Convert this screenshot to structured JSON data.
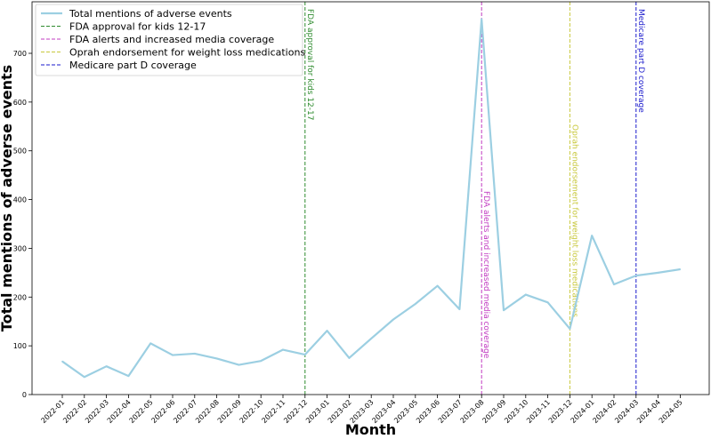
{
  "chart_data": {
    "type": "line",
    "title": "",
    "xlabel": "Month",
    "ylabel": "Total mentions of adverse events",
    "ylim": [
      0,
      780
    ],
    "yticks": [
      0,
      100,
      200,
      300,
      400,
      500,
      600,
      700
    ],
    "grid": false,
    "legend_position": "top-left",
    "categories": [
      "2022-01",
      "2022-02",
      "2022-03",
      "2022-04",
      "2022-05",
      "2022-06",
      "2022-07",
      "2022-08",
      "2022-09",
      "2022-10",
      "2022-11",
      "2022-12",
      "2023-01",
      "2023-02",
      "2023-03",
      "2023-04",
      "2023-05",
      "2023-06",
      "2023-07",
      "2023-08",
      "2023-09",
      "2023-10",
      "2023-11",
      "2023-12",
      "2024-01",
      "2024-02",
      "2024-03",
      "2024-04",
      "2024-05"
    ],
    "series": [
      {
        "name": "Total mentions of adverse events",
        "color": "#9ccfe2",
        "values": [
          68,
          36,
          58,
          38,
          105,
          81,
          84,
          74,
          61,
          69,
          92,
          82,
          131,
          75,
          115,
          154,
          186,
          223,
          175,
          770,
          173,
          205,
          189,
          135,
          326,
          226,
          244,
          250,
          257
        ]
      }
    ],
    "vertical_lines": [
      {
        "name": "FDA approval for kids 12-17",
        "x": "2022-12",
        "color": "#2e8b2e",
        "label": "FDA approval for kids 12-17"
      },
      {
        "name": "FDA alerts and increased media coverage",
        "x": "2023-08",
        "color": "#c23cc2",
        "label": "FDA alerts and increased media coverage"
      },
      {
        "name": "Oprah endorsement for weight loss medications",
        "x": "2023-12",
        "color": "#c8c83c",
        "label": "Oprah endorsement for weight loss medications"
      },
      {
        "name": "Medicare part D coverage",
        "x": "2024-03",
        "color": "#1a1acc",
        "label": "Medicare part D coverage"
      }
    ]
  }
}
